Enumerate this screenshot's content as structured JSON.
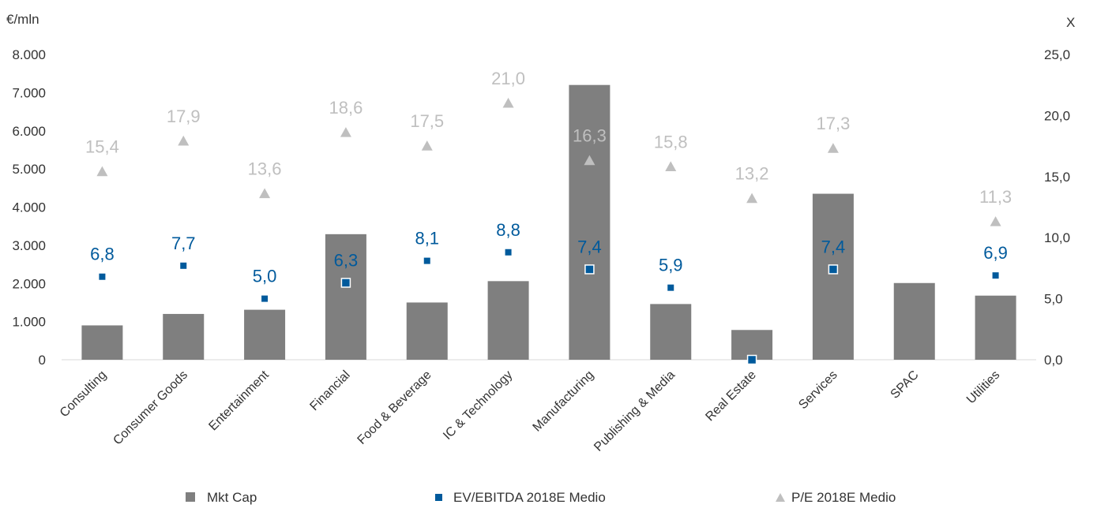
{
  "chart_data": {
    "type": "bar",
    "categories": [
      "Consulting",
      "Consumer Goods",
      "Entertainment",
      "Financial",
      "Food & Beverage",
      "IC & Technology",
      "Manufacturing",
      "Publishing & Media",
      "Real Estate",
      "Services",
      "SPAC",
      "Utilities"
    ],
    "series": [
      {
        "name": "Mkt Cap",
        "type": "bar",
        "axis": "left",
        "color": "#7f7f7f",
        "values": [
          900,
          1200,
          1310,
          3290,
          1500,
          2060,
          7200,
          1460,
          780,
          4350,
          2010,
          1680
        ]
      },
      {
        "name": "EV/EBITDA 2018E Medio",
        "type": "scatter",
        "axis": "right",
        "color": "#005a9c",
        "marker": "square",
        "values": [
          6.8,
          7.7,
          5.0,
          6.3,
          8.1,
          8.8,
          7.4,
          5.9,
          0.0,
          7.4,
          null,
          6.9
        ],
        "labels": [
          "6,8",
          "7,7",
          "5,0",
          "6,3",
          "8,1",
          "8,8",
          "7,4",
          "5,9",
          "",
          "7,4",
          "",
          "6,9"
        ]
      },
      {
        "name": "P/E 2018E Medio",
        "type": "scatter",
        "axis": "right",
        "color": "#bfbfbf",
        "marker": "triangle",
        "values": [
          15.4,
          17.9,
          13.6,
          18.6,
          17.5,
          21.0,
          16.3,
          15.8,
          13.2,
          17.3,
          null,
          11.3
        ],
        "labels": [
          "15,4",
          "17,9",
          "13,6",
          "18,6",
          "17,5",
          "21,0",
          "16,3",
          "15,8",
          "13,2",
          "17,3",
          "",
          "11,3"
        ]
      }
    ],
    "y_left": {
      "unit": "€/mln",
      "range": [
        0,
        8000
      ],
      "ticks": [
        "0",
        "1.000",
        "2.000",
        "3.000",
        "4.000",
        "5.000",
        "6.000",
        "7.000",
        "8.000"
      ]
    },
    "y_right": {
      "unit": "X",
      "range": [
        0,
        25
      ],
      "ticks": [
        "0,0",
        "5,0",
        "10,0",
        "15,0",
        "20,0",
        "25,0"
      ]
    },
    "grid": false,
    "legend_position": "bottom"
  }
}
